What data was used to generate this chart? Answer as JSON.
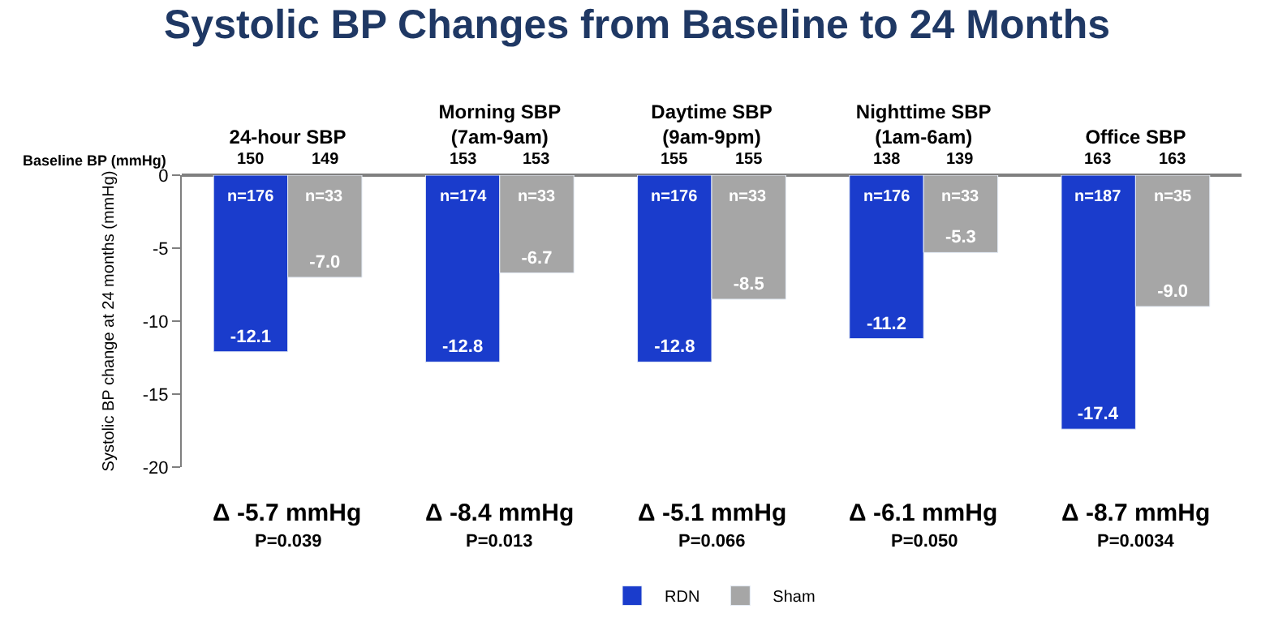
{
  "chart_data": {
    "type": "bar",
    "title": "Systolic BP Changes from Baseline to 24 Months",
    "ylabel": "Systolic BP change at 24 months (mmHg)",
    "categories": [
      "24-hour SBP",
      "Morning SBP\n(7am-9am)",
      "Daytime SBP\n(9am-9pm)",
      "Nighttime SBP\n(1am-6am)",
      "Office SBP"
    ],
    "series": [
      {
        "name": "RDN",
        "color": "#1a3ccc",
        "values": [
          -12.1,
          -12.8,
          -12.8,
          -11.2,
          -17.4
        ],
        "value_labels": [
          "-12.1",
          "-12.8",
          "-12.8",
          "-11.2",
          "-17.4"
        ]
      },
      {
        "name": "Sham",
        "color": "#a6a6a6",
        "values": [
          -7.0,
          -6.7,
          -8.5,
          -5.3,
          -9.0
        ],
        "value_labels": [
          "-7.0",
          "-6.7",
          "-8.5",
          "-5.3",
          "-9.0"
        ]
      }
    ],
    "ylim": [
      -20,
      0
    ],
    "yticks": [
      0,
      -5,
      -10,
      -15,
      -20
    ],
    "legend": "bottom",
    "annotations": [
      "Baseline BP (mmHg)",
      "150",
      "149",
      "153",
      "153",
      "155",
      "155",
      "138",
      "139",
      "163",
      "163",
      "n=176",
      "n=33",
      "n=174",
      "n=33",
      "n=176",
      "n=33",
      "n=176",
      "n=33",
      "n=187",
      "n=35",
      "Δ -5.7 mmHg",
      "Δ -8.4 mmHg",
      "Δ -5.1 mmHg",
      "Δ -6.1 mmHg",
      "Δ -8.7 mmHg",
      "P=0.039",
      "P=0.013",
      "P=0.066",
      "P=0.050",
      "P=0.0034"
    ]
  }
}
